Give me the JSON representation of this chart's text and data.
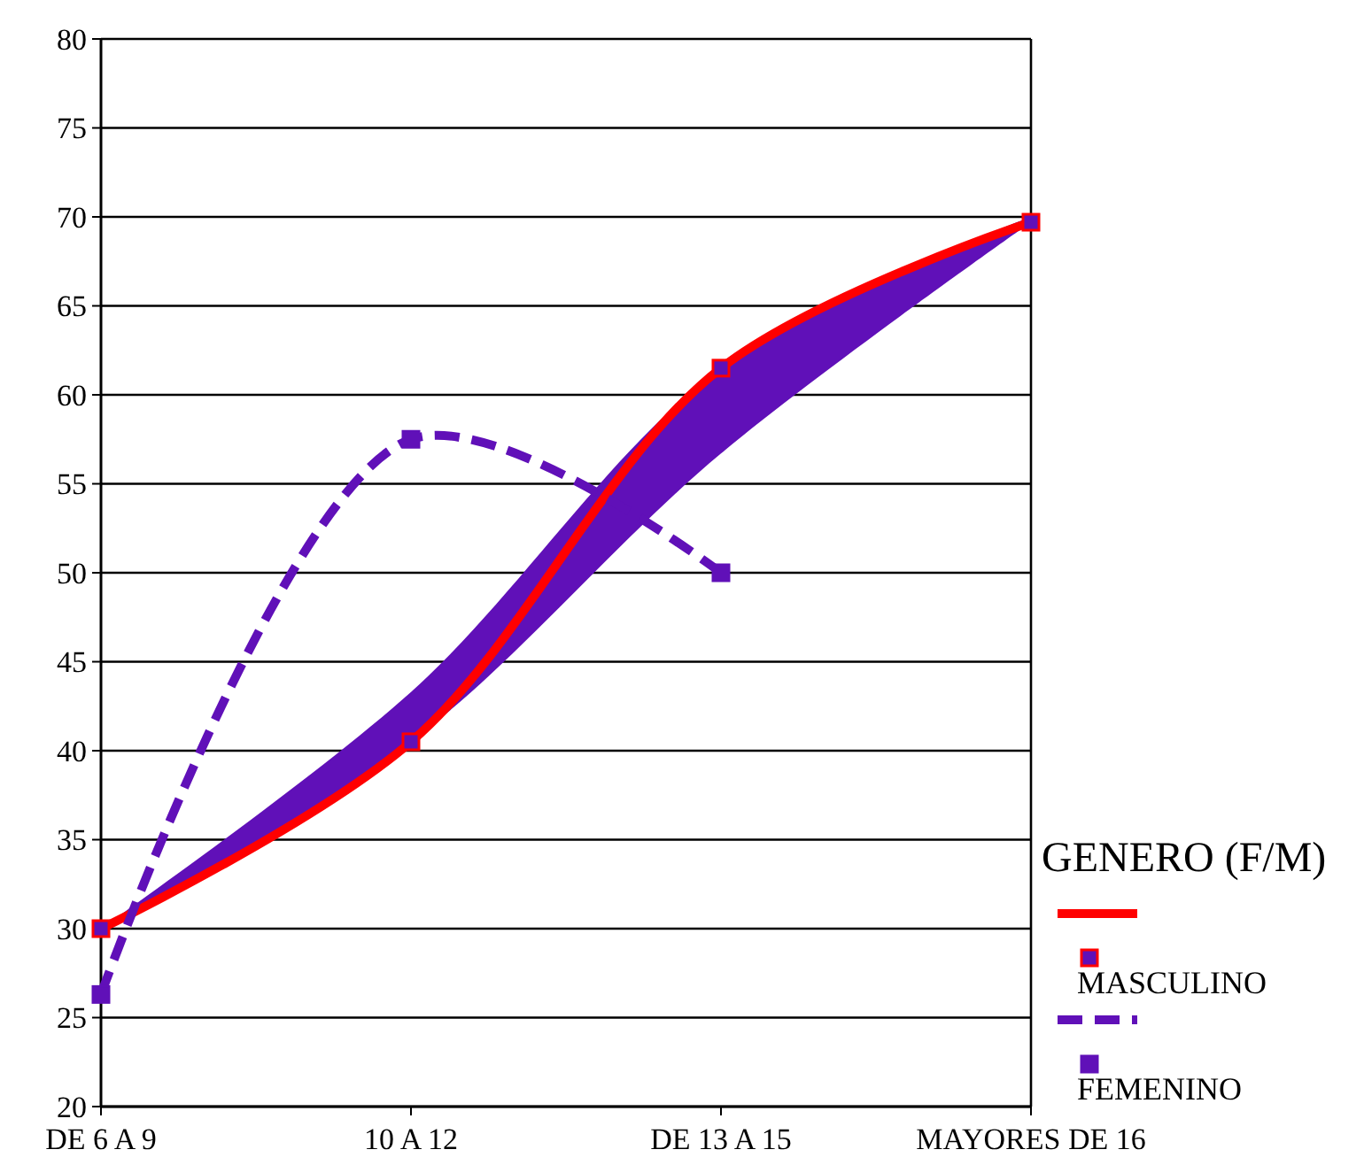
{
  "chart_data": {
    "type": "line",
    "categories": [
      "DE 6 A 9",
      "10 A 12",
      "DE 13 A 15",
      "MAYORES DE 16"
    ],
    "legend_title": "GENERO (F/M)",
    "legend": "right",
    "grid": "y",
    "marker": "square",
    "ylim": [
      20,
      80
    ],
    "yticks": [
      20,
      25,
      30,
      35,
      40,
      45,
      50,
      55,
      60,
      65,
      70,
      75,
      80
    ],
    "series": [
      {
        "name": "MASCULINO",
        "color": "#ff0000",
        "values": [
          30,
          40.5,
          61.5,
          69.7
        ],
        "lower": [
          30,
          40.5,
          56.7,
          69.7
        ],
        "upper": [
          30,
          43.3,
          61.5,
          70
        ],
        "line_style": "solid"
      },
      {
        "name": "FEMENINO",
        "color": "#6010b8",
        "values": [
          26.3,
          57.5,
          50,
          null
        ],
        "line_style": "dashed"
      }
    ]
  }
}
